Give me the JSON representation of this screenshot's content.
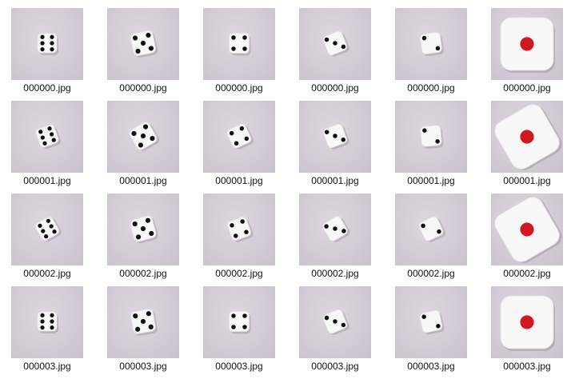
{
  "accent_colors": {
    "pip_black": "#111111",
    "pip_red": "#d01822",
    "die_face": "#f7f7f7",
    "background_tint": "#d3cbd6"
  },
  "rows": [
    {
      "files": [
        {
          "name": "000000.jpg",
          "icon": "die-six-icon",
          "pips": 6
        },
        {
          "name": "000000.jpg",
          "icon": "die-five-icon",
          "pips": 5
        },
        {
          "name": "000000.jpg",
          "icon": "die-four-icon",
          "pips": 4
        },
        {
          "name": "000000.jpg",
          "icon": "die-three-icon",
          "pips": 3
        },
        {
          "name": "000000.jpg",
          "icon": "die-two-icon",
          "pips": 2
        },
        {
          "name": "000000.jpg",
          "icon": "die-one-icon",
          "pips": 1
        }
      ]
    },
    {
      "files": [
        {
          "name": "000001.jpg",
          "icon": "die-six-icon",
          "pips": 6
        },
        {
          "name": "000001.jpg",
          "icon": "die-five-icon",
          "pips": 5
        },
        {
          "name": "000001.jpg",
          "icon": "die-four-icon",
          "pips": 4
        },
        {
          "name": "000001.jpg",
          "icon": "die-three-icon",
          "pips": 3
        },
        {
          "name": "000001.jpg",
          "icon": "die-two-icon",
          "pips": 2
        },
        {
          "name": "000001.jpg",
          "icon": "die-one-icon",
          "pips": 1
        }
      ]
    },
    {
      "files": [
        {
          "name": "000002.jpg",
          "icon": "die-six-icon",
          "pips": 6
        },
        {
          "name": "000002.jpg",
          "icon": "die-five-icon",
          "pips": 5
        },
        {
          "name": "000002.jpg",
          "icon": "die-four-icon",
          "pips": 4
        },
        {
          "name": "000002.jpg",
          "icon": "die-three-icon",
          "pips": 3
        },
        {
          "name": "000002.jpg",
          "icon": "die-two-icon",
          "pips": 2
        },
        {
          "name": "000002.jpg",
          "icon": "die-one-icon",
          "pips": 1
        }
      ]
    },
    {
      "files": [
        {
          "name": "000003.jpg",
          "icon": "die-six-icon",
          "pips": 6
        },
        {
          "name": "000003.jpg",
          "icon": "die-five-icon",
          "pips": 5
        },
        {
          "name": "000003.jpg",
          "icon": "die-four-icon",
          "pips": 4
        },
        {
          "name": "000003.jpg",
          "icon": "die-three-icon",
          "pips": 3
        },
        {
          "name": "000003.jpg",
          "icon": "die-two-icon",
          "pips": 2
        },
        {
          "name": "000003.jpg",
          "icon": "die-one-icon",
          "pips": 1
        }
      ]
    }
  ]
}
